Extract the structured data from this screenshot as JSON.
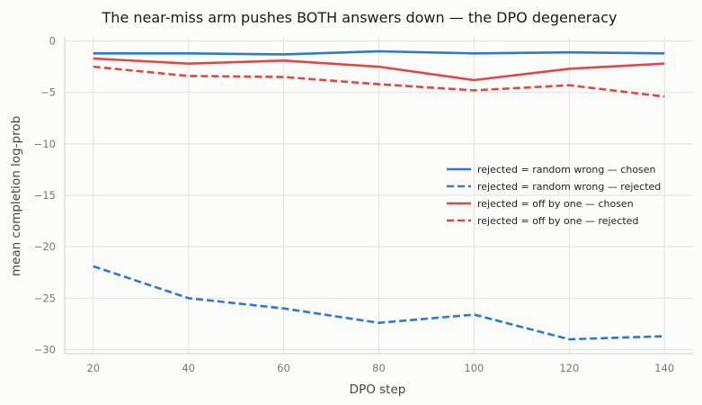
{
  "chart_data": {
    "type": "line",
    "title": "The near-miss arm pushes BOTH answers down — the DPO degeneracy",
    "xlabel": "DPO step",
    "ylabel": "mean completion log-prob",
    "x": [
      20,
      40,
      60,
      80,
      100,
      120,
      140
    ],
    "xticks": [
      "20",
      "40",
      "60",
      "80",
      "100",
      "120",
      "140"
    ],
    "yticks": [
      "0",
      "−5",
      "−10",
      "−15",
      "−20",
      "−25",
      "−30"
    ],
    "ytick_values": [
      0,
      -5,
      -10,
      -15,
      -20,
      -25,
      -30
    ],
    "xlim": [
      14,
      146
    ],
    "ylim": [
      -30.4,
      0.4
    ],
    "grid": true,
    "legend_position": "right",
    "series": [
      {
        "name": "rejected = random wrong — chosen",
        "values": [
          -1.2,
          -1.2,
          -1.3,
          -1.0,
          -1.2,
          -1.1,
          -1.2
        ],
        "color": "#2f78d0",
        "dash": "solid"
      },
      {
        "name": "rejected = random wrong — rejected",
        "values": [
          -21.9,
          -25.0,
          -26.0,
          -27.4,
          -26.6,
          -29.0,
          -28.7
        ],
        "color": "#2f78d0",
        "dash": "dashed"
      },
      {
        "name": "rejected = off by one — chosen",
        "values": [
          -1.7,
          -2.2,
          -1.9,
          -2.5,
          -3.8,
          -2.7,
          -2.2
        ],
        "color": "#e04848",
        "dash": "solid"
      },
      {
        "name": "rejected = off by one — rejected",
        "values": [
          -2.5,
          -3.4,
          -3.5,
          -4.2,
          -4.8,
          -4.3,
          -5.4
        ],
        "color": "#e04848",
        "dash": "dashed"
      }
    ]
  }
}
